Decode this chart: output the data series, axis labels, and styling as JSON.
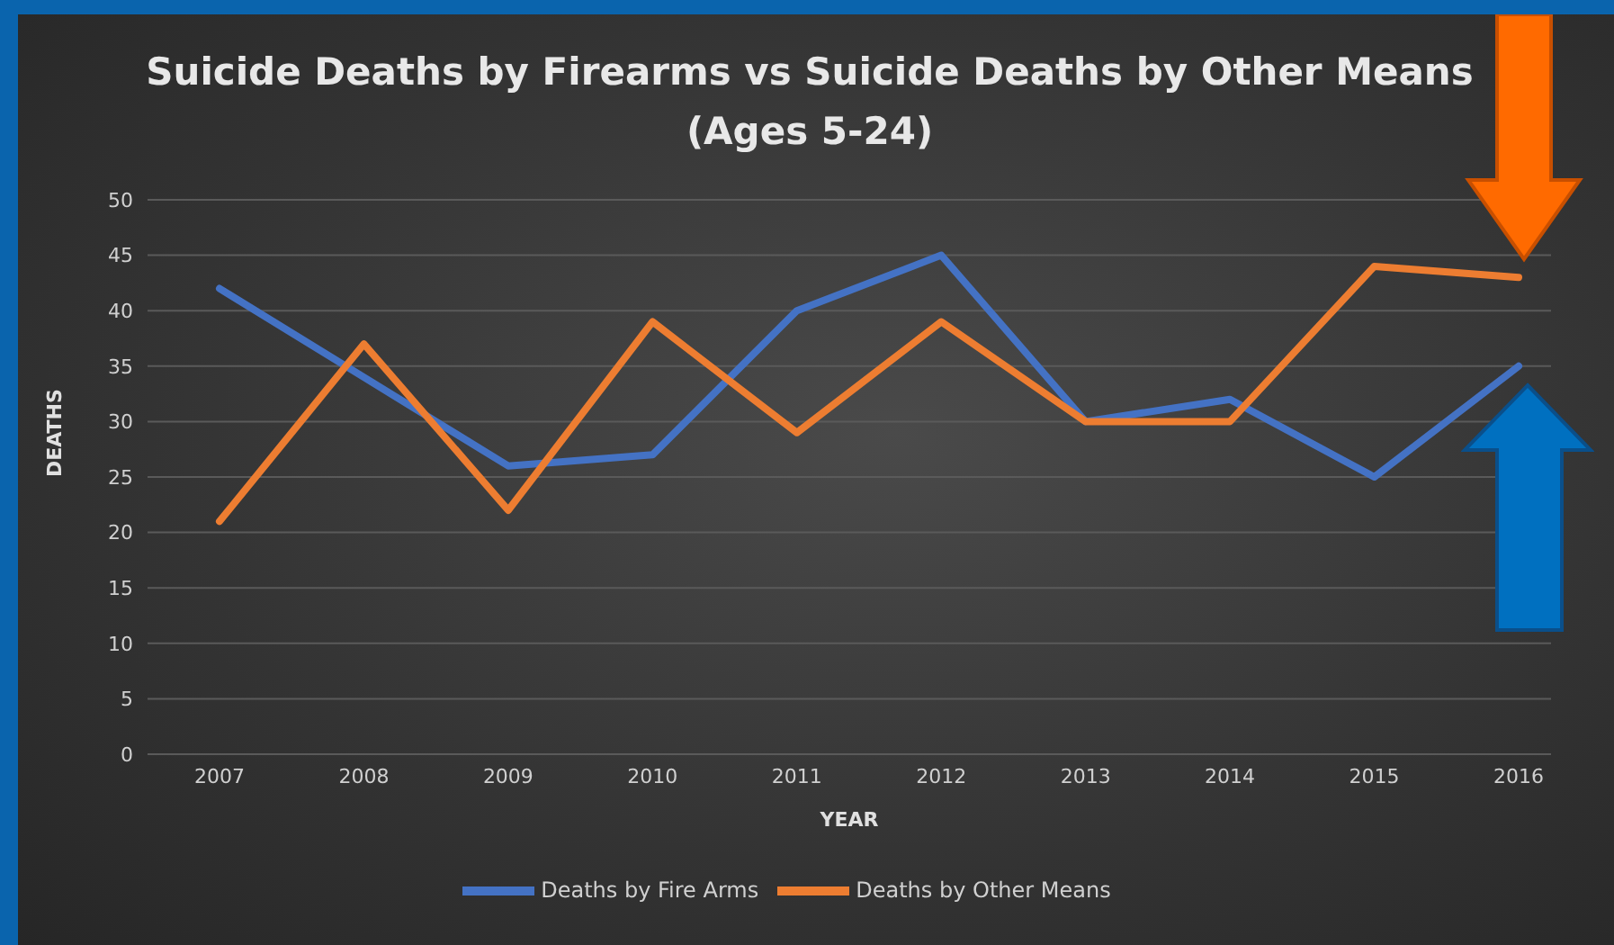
{
  "chart_data": {
    "type": "line",
    "title": "Suicide Deaths by Firearms vs Suicide Deaths by Other Means (Ages 5-24)",
    "xlabel": "YEAR",
    "ylabel": "DEATHS",
    "categories": [
      "2007",
      "2008",
      "2009",
      "2010",
      "2011",
      "2012",
      "2013",
      "2014",
      "2015",
      "2016"
    ],
    "series": [
      {
        "name": "Deaths by Fire Arms",
        "color": "#4472c4",
        "values": [
          42,
          34,
          26,
          27,
          40,
          45,
          30,
          32,
          25,
          35
        ]
      },
      {
        "name": "Deaths by Other Means",
        "color": "#ed7d31",
        "values": [
          21,
          37,
          22,
          39,
          29,
          39,
          30,
          30,
          44,
          43
        ]
      }
    ],
    "ylim": [
      0,
      50
    ],
    "yticks": [
      0,
      5,
      10,
      15,
      20,
      25,
      30,
      35,
      40,
      45,
      50
    ],
    "grid": "y",
    "legend": "bottom",
    "marker": "none",
    "line_style": "solid"
  }
}
